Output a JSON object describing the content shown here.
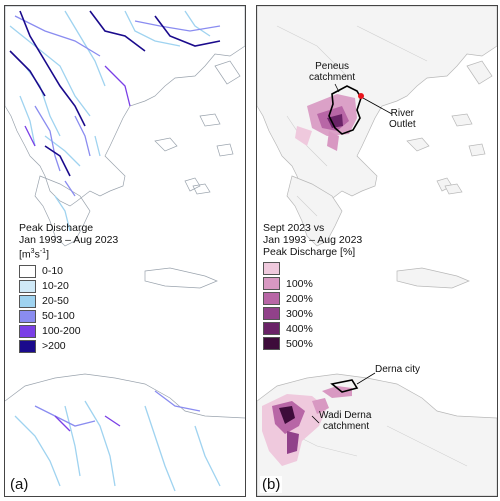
{
  "panel_a": {
    "label": "(a)",
    "legend": {
      "title_line1": "Peak Discharge",
      "title_line2": "Jan 1993 – Aug 2023",
      "unit_base": "[m",
      "unit_sup": "3",
      "unit_mid": "s",
      "unit_sup2": "-1",
      "unit_end": "]",
      "classes": [
        {
          "label": "0-10",
          "color": "#ffffff"
        },
        {
          "label": "10-20",
          "color": "#cfe9f7"
        },
        {
          "label": "20-50",
          "color": "#9fd3f0"
        },
        {
          "label": "50-100",
          "color": "#8a8cf0"
        },
        {
          "label": "100-200",
          "color": "#7a3fe6"
        },
        {
          "label": ">200",
          "color": "#1a0a8c"
        }
      ]
    }
  },
  "panel_b": {
    "label": "(b)",
    "legend": {
      "title_line1": "Sept 2023 vs",
      "title_line2": "Jan 1993 – Aug 2023",
      "title_line3": "Peak Discharge [%]",
      "classes": [
        {
          "label": "",
          "color": "#efc9dd"
        },
        {
          "label": "100%",
          "color": "#d898c2"
        },
        {
          "label": "200%",
          "color": "#b866a6"
        },
        {
          "label": "300%",
          "color": "#91418a"
        },
        {
          "label": "400%",
          "color": "#6a2367"
        },
        {
          "label": "500%",
          "color": "#3d0c3a"
        }
      ]
    },
    "annotations": {
      "peneus_line1": "Peneus",
      "peneus_line2": "catchment",
      "outlet_line1": "River",
      "outlet_line2": "Outlet",
      "derna_city": "Derna city",
      "wadi_line1": "Wadi Derna",
      "wadi_line2": "catchment"
    },
    "outlet_color": "#e8141c"
  }
}
